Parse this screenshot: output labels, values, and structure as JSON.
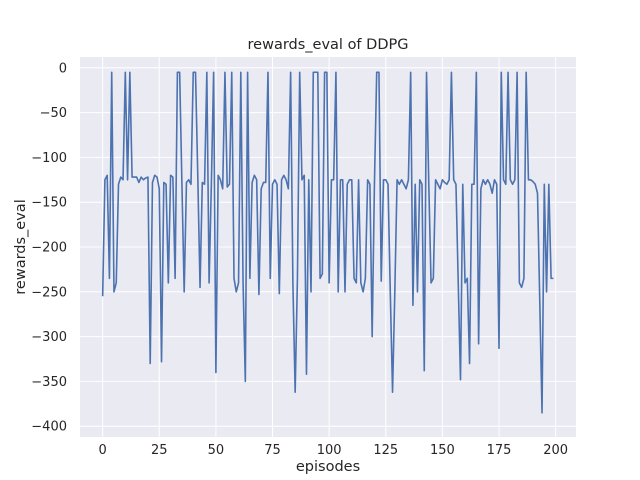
{
  "chart_data": {
    "type": "line",
    "title": "rewards_eval of DDPG",
    "xlabel": "episodes",
    "ylabel": "rewards_eval",
    "xlim": [
      -10,
      209
    ],
    "ylim": [
      -412,
      12
    ],
    "xticks": [
      0,
      25,
      50,
      75,
      100,
      125,
      150,
      175,
      200
    ],
    "yticks": [
      0,
      -50,
      -100,
      -150,
      -200,
      -250,
      -300,
      -350,
      -400
    ],
    "xtick_labels": [
      "0",
      "25",
      "50",
      "75",
      "100",
      "125",
      "150",
      "175",
      "200"
    ],
    "ytick_labels": [
      "0",
      "−50",
      "−100",
      "−150",
      "−200",
      "−250",
      "−300",
      "−350",
      "−400"
    ],
    "grid": true,
    "colors": {
      "line": "#4c72b0",
      "axes_bg": "#eaeaf2",
      "grid": "#ffffff"
    },
    "series": [
      {
        "values": [
          -255,
          -125,
          -120,
          -235,
          -5,
          -250,
          -240,
          -130,
          -122,
          -125,
          -5,
          -125,
          -5,
          -122,
          -122,
          -122,
          -128,
          -122,
          -125,
          -123,
          -122,
          -330,
          -128,
          -120,
          -122,
          -135,
          -328,
          -128,
          -130,
          -240,
          -120,
          -122,
          -235,
          -5,
          -5,
          -130,
          -250,
          -128,
          -125,
          -130,
          -5,
          -5,
          -120,
          -245,
          -128,
          -130,
          -5,
          -240,
          -130,
          -5,
          -340,
          -120,
          -125,
          -135,
          -5,
          -133,
          -130,
          -5,
          -235,
          -250,
          -240,
          -5,
          -240,
          -350,
          -5,
          -235,
          -128,
          -120,
          -125,
          -253,
          -135,
          -128,
          -128,
          -5,
          -235,
          -130,
          -125,
          -130,
          -252,
          -125,
          -120,
          -125,
          -135,
          -5,
          -240,
          -362,
          -235,
          -5,
          -125,
          -120,
          -342,
          -125,
          -250,
          -5,
          -5,
          -5,
          -235,
          -230,
          -5,
          -5,
          -240,
          -125,
          -125,
          -5,
          -250,
          -125,
          -125,
          -250,
          -130,
          -125,
          -125,
          -235,
          -240,
          -125,
          -240,
          -250,
          -235,
          -125,
          -130,
          -300,
          -130,
          -5,
          -5,
          -238,
          -125,
          -125,
          -130,
          -250,
          -362,
          -250,
          -125,
          -130,
          -125,
          -130,
          -135,
          -125,
          -5,
          -265,
          -130,
          -250,
          -125,
          -130,
          -338,
          -5,
          -130,
          -240,
          -235,
          -125,
          -130,
          -135,
          -125,
          -128,
          -130,
          -125,
          -5,
          -125,
          -130,
          -240,
          -348,
          -130,
          -240,
          -235,
          -330,
          -130,
          -130,
          -5,
          -308,
          -135,
          -125,
          -130,
          -125,
          -130,
          -140,
          -125,
          -130,
          -313,
          -5,
          -125,
          -130,
          -5,
          -125,
          -130,
          -125,
          -5,
          -240,
          -245,
          -235,
          -5,
          -125,
          -125,
          -127,
          -130,
          -140,
          -260,
          -385,
          -130,
          -250,
          -130,
          -235,
          -235
        ]
      }
    ]
  }
}
